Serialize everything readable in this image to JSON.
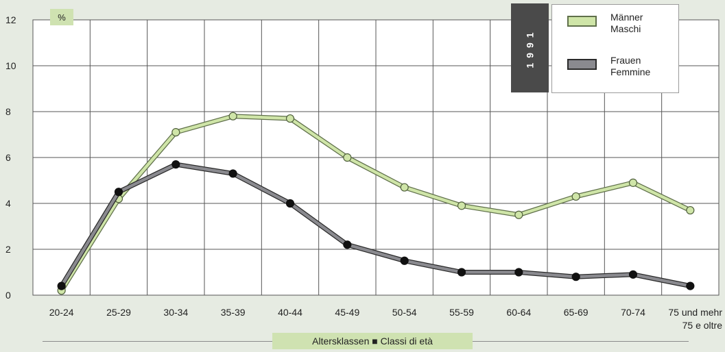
{
  "chart_data": {
    "type": "line",
    "categories": [
      "20-24",
      "25-29",
      "30-34",
      "35-39",
      "40-44",
      "45-49",
      "50-54",
      "55-59",
      "60-64",
      "65-69",
      "70-74",
      "75 und mehr\n75 e oltre"
    ],
    "series": [
      {
        "name": "Männer\nMaschi",
        "color": "#cfe5a8",
        "values": [
          0.2,
          4.2,
          7.1,
          7.8,
          7.7,
          6.0,
          4.7,
          3.9,
          3.5,
          4.3,
          4.9,
          3.7
        ]
      },
      {
        "name": "Frauen\nFemmine",
        "color": "#8a8a8f",
        "values": [
          0.4,
          4.5,
          5.7,
          5.3,
          4.0,
          2.2,
          1.5,
          1.0,
          1.0,
          0.8,
          0.9,
          0.4
        ]
      }
    ],
    "yticks": [
      "0",
      "2",
      "4",
      "6",
      "8",
      "10",
      "12"
    ],
    "ylim": [
      0,
      12
    ],
    "ylabel": "%",
    "xlabel": "Altersklassen ■ Classi di età",
    "legend_title": "1991",
    "grid": true,
    "legend_position": "top-right"
  }
}
